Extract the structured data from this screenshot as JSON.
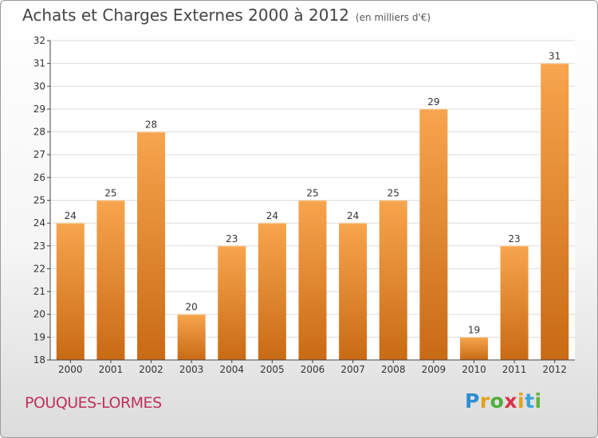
{
  "chart_data": {
    "type": "bar",
    "title": "Achats et Charges Externes 2000 à 2012",
    "subtitle": "(en milliers d'€)",
    "categories": [
      "2000",
      "2001",
      "2002",
      "2003",
      "2004",
      "2005",
      "2006",
      "2007",
      "2008",
      "2009",
      "2010",
      "2011",
      "2012"
    ],
    "values": [
      24,
      25,
      28,
      20,
      23,
      24,
      25,
      24,
      25,
      29,
      19,
      23,
      31
    ],
    "ylim": [
      18,
      32
    ],
    "yticks": [
      18,
      19,
      20,
      21,
      22,
      23,
      24,
      25,
      26,
      27,
      28,
      29,
      30,
      31,
      32
    ],
    "grid": true,
    "colors": {
      "bar_top": "#f7a54e",
      "bar_bottom": "#c96a14",
      "grid": "#dcdcdc",
      "axis": "#444444"
    }
  },
  "footer": {
    "commune": "POUQUES-LORMES",
    "logo_letters": [
      {
        "ch": "P",
        "color": "#2b8fd1"
      },
      {
        "ch": "r",
        "color": "#e2a21c"
      },
      {
        "ch": "o",
        "color": "#4caf3a"
      },
      {
        "ch": "x",
        "color": "#d8334a"
      },
      {
        "ch": "i",
        "color": "#e2a21c"
      },
      {
        "ch": "t",
        "color": "#3ba3d8"
      },
      {
        "ch": "i",
        "color": "#5fb33c"
      }
    ]
  }
}
